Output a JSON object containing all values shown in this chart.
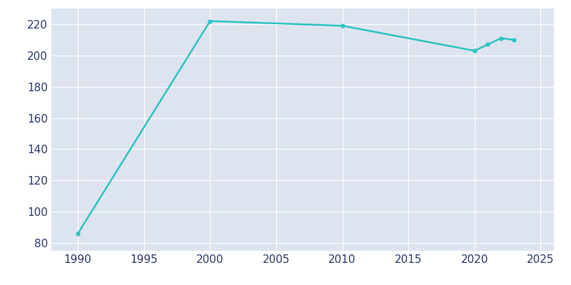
{
  "years": [
    1990,
    2000,
    2010,
    2020,
    2021,
    2022,
    2023
  ],
  "population": [
    86,
    222,
    219,
    203,
    207,
    211,
    210
  ],
  "line_color": "#2EC4C1",
  "marker": "o",
  "marker_size": 3.5,
  "bg_color": "#FFFFFF",
  "axes_bg_color": "#DDE4EF",
  "grid_color": "#FFFFFF",
  "tick_color": "#2E3A6E",
  "xlim": [
    1988,
    2026
  ],
  "ylim": [
    75,
    230
  ],
  "xticks": [
    1990,
    1995,
    2000,
    2005,
    2010,
    2015,
    2020,
    2025
  ],
  "yticks": [
    80,
    100,
    120,
    140,
    160,
    180,
    200,
    220
  ],
  "linewidth": 1.8,
  "tick_labelsize": 11
}
